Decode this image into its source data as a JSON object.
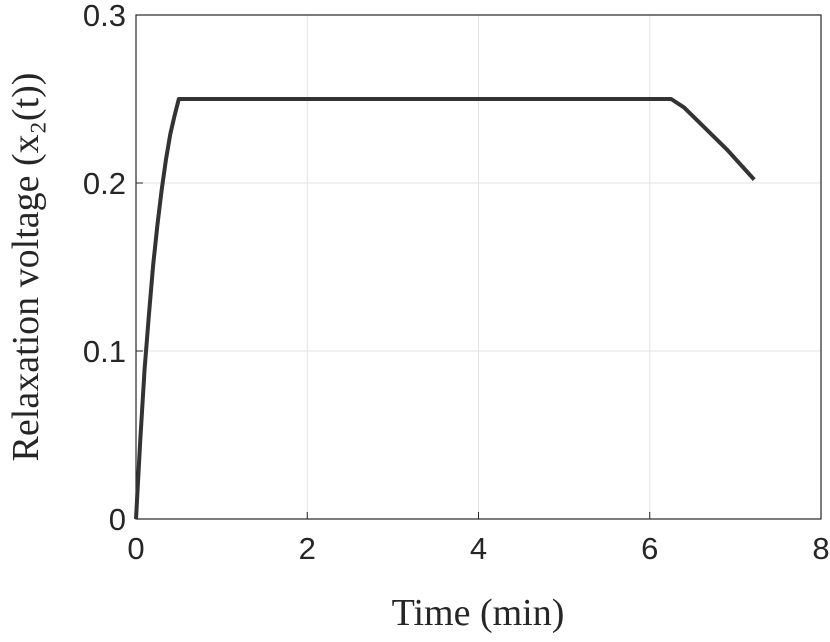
{
  "chart_data": {
    "type": "line",
    "x_label": "Time (min)",
    "y_label": "Relaxation voltage (x₂(t))",
    "series": [
      {
        "name": "x2",
        "color": "#333333",
        "x": [
          0,
          0.05,
          0.1,
          0.15,
          0.2,
          0.25,
          0.3,
          0.35,
          0.4,
          0.45,
          0.5,
          6.25,
          6.4,
          6.6,
          6.9,
          7.22
        ],
        "values": [
          0,
          0.047,
          0.089,
          0.121,
          0.151,
          0.175,
          0.196,
          0.214,
          0.229,
          0.24,
          0.25,
          0.25,
          0.245,
          0.235,
          0.22,
          0.202
        ]
      }
    ],
    "xlim": [
      0,
      8
    ],
    "xticks": [
      0,
      2,
      4,
      6,
      8
    ],
    "ylim": [
      0,
      0.3
    ],
    "yticks": [
      0,
      0.1,
      0.2,
      0.3
    ],
    "grid": true
  }
}
